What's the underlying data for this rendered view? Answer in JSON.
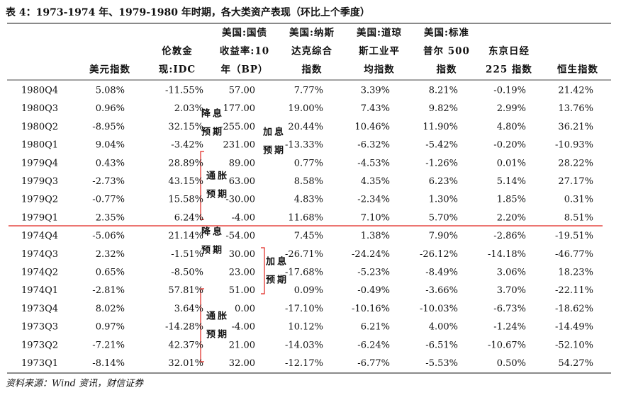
{
  "title": "表 4：1973-1974 年、1979-1980 年时期，各大类资产表现（环比上个季度）",
  "source": "资料来源：Wind 资讯，财信证券",
  "table": {
    "header": [
      [
        "美元指数"
      ],
      [
        "伦敦金",
        "现:IDC"
      ],
      [
        "美国:国债",
        "收益率:10",
        "年（BP）"
      ],
      [
        "美国:纳斯",
        "达克综合",
        "指数"
      ],
      [
        "美国:道琼",
        "斯工业平",
        "均指数"
      ],
      [
        "美国:标准",
        "普尔 500",
        "指数"
      ],
      [
        "东京日经",
        "225 指数"
      ],
      [
        "恒生指数"
      ]
    ],
    "rows": [
      [
        "1980Q4",
        "5.08%",
        "-11.55%",
        "57.00",
        "7.77%",
        "3.39%",
        "8.21%",
        "-0.19%",
        "21.42%"
      ],
      [
        "1980Q3",
        "0.96%",
        {
          "text": "2.03%",
          "color": "#1f9a3e"
        },
        "177.00",
        "19.00%",
        "7.43%",
        "9.82%",
        "2.99%",
        "13.76%"
      ],
      [
        "1980Q2",
        "-8.95%",
        {
          "text": "32.15%",
          "color": "#e0251f"
        },
        {
          "text": "-255.00",
          "color": "#1f9a3e"
        },
        {
          "text": "20.44%",
          "color": "#e0251f"
        },
        "10.46%",
        "11.90%",
        "4.80%",
        "36.21%"
      ],
      [
        "1980Q1",
        "9.04%",
        {
          "text": "-3.42%",
          "color": "#1f9a3e"
        },
        {
          "text": "231.00",
          "color": "#e0251f"
        },
        {
          "text": "-13.33%",
          "color": "#1f9a3e"
        },
        "-6.32%",
        "-5.42%",
        "-0.20%",
        "-10.93%"
      ],
      [
        "1979Q4",
        "0.43%",
        {
          "text": "28.89%",
          "color": "#e0251f"
        },
        {
          "text": "89.00",
          "color": "#e0251f"
        },
        "0.77%",
        "-4.53%",
        "-1.26%",
        "0.01%",
        "28.22%"
      ],
      [
        "1979Q3",
        "-2.73%",
        {
          "text": "43.15%",
          "color": "#e0251f"
        },
        {
          "text": "63.00",
          "color": "#e0251f"
        },
        "8.58%",
        "4.35%",
        "6.23%",
        "5.14%",
        "27.17%"
      ],
      [
        "1979Q2",
        "-0.77%",
        {
          "text": "15.58%",
          "color": "#e0251f"
        },
        "-30.00",
        "4.83%",
        "-2.34%",
        "1.30%",
        "1.85%",
        "0.31%"
      ],
      [
        "1979Q1",
        "2.35%",
        {
          "text": "6.24%",
          "color": "#e0251f"
        },
        "-4.00",
        "11.68%",
        "7.10%",
        "5.70%",
        "2.20%",
        "8.51%"
      ],
      [
        "1974Q4",
        "-5.06%",
        {
          "text": "21.14%",
          "color": "#e0251f"
        },
        {
          "text": "-54.00",
          "color": "#1f9a3e"
        },
        {
          "text": "7.45%",
          "color": "#e0251f"
        },
        "1.38%",
        "7.90%",
        "-2.86%",
        "-19.51%"
      ],
      [
        "1974Q3",
        "2.32%",
        {
          "text": "-1.51%",
          "color": "#1f9a3e"
        },
        {
          "text": "30.00",
          "color": "#e0251f"
        },
        {
          "text": "-26.71%",
          "color": "#1f9a3e"
        },
        "-24.24%",
        "-26.12%",
        "-14.18%",
        "-46.77%"
      ],
      [
        "1974Q2",
        "0.65%",
        {
          "text": "-8.50%",
          "color": "#1f9a3e"
        },
        {
          "text": "23.00",
          "color": "#e0251f"
        },
        {
          "text": "-17.68%",
          "color": "#1f9a3e"
        },
        "-5.23%",
        "-8.49%",
        "3.06%",
        "18.23%"
      ],
      [
        "1974Q1",
        "-2.81%",
        {
          "text": "57.81%",
          "color": "#e0251f"
        },
        {
          "text": "51.00",
          "color": "#e0251f"
        },
        "0.09%",
        "-0.49%",
        "-3.66%",
        "3.70%",
        "-22.11%"
      ],
      [
        "1973Q4",
        "8.02%",
        {
          "text": "3.64%",
          "color": "#e0251f"
        },
        "0.00",
        "-17.10%",
        "-10.16%",
        "-10.03%",
        "-6.73%",
        "-18.62%"
      ],
      [
        "1973Q3",
        "0.97%",
        "-14.28%",
        "-4.00",
        "10.12%",
        "6.21%",
        "4.00%",
        "-1.24%",
        "-14.49%"
      ],
      [
        "1973Q2",
        "-7.21%",
        {
          "text": "42.37%",
          "color": "#e0251f"
        },
        "21.00",
        "-14.03%",
        "-6.24%",
        "-6.51%",
        "-10.67%",
        "-52.10%"
      ],
      [
        "1973Q1",
        "-8.14%",
        {
          "text": "32.01%",
          "color": "#e0251f"
        },
        "32.00",
        "-12.17%",
        "-6.77%",
        "-5.53%",
        "0.50%",
        "54.27%"
      ]
    ]
  },
  "annotations": [
    {
      "lines": [
        "降息",
        "预期"
      ],
      "color": "#1f9a3e"
    },
    {
      "lines": [
        "加息",
        "预期"
      ],
      "color": "#e0251f"
    },
    {
      "lines": [
        "通胀",
        "预期"
      ],
      "color": "#e0251f"
    },
    {
      "lines": [
        "降息",
        "预期"
      ],
      "color": "#1f9a3e"
    },
    {
      "lines": [
        "加息",
        "预期"
      ],
      "color": "#e0251f"
    },
    {
      "lines": [
        "通胀",
        "预期"
      ],
      "color": "#e0251f"
    }
  ]
}
